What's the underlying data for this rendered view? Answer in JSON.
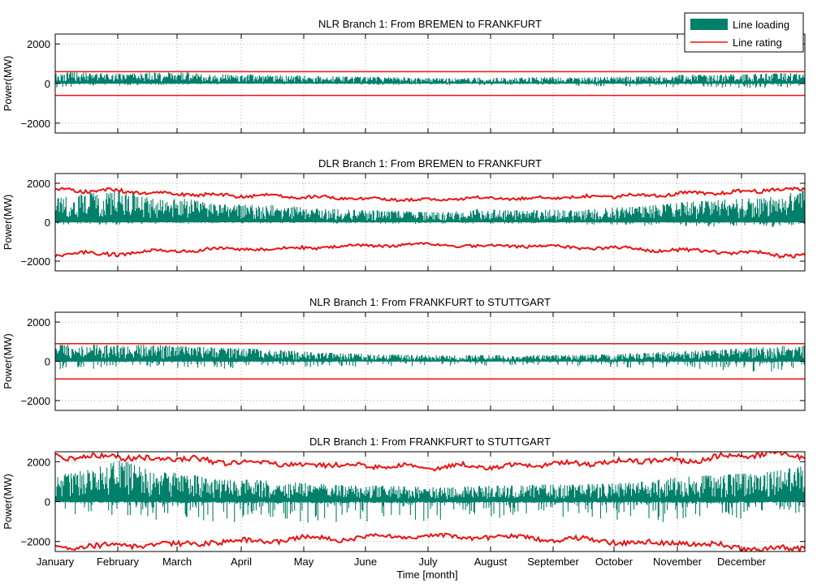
{
  "figure": {
    "xlabel": "Time [month]",
    "months": [
      "January",
      "February",
      "March",
      "April",
      "May",
      "June",
      "July",
      "August",
      "September",
      "October",
      "November",
      "December"
    ]
  },
  "legend": {
    "loading_label": "Line loading",
    "rating_label": "Line rating",
    "placement": "top-right"
  },
  "colors": {
    "loading": "#00806a",
    "rating": "#ee1111",
    "grid": "#8c8c8c",
    "axis": "#000000"
  },
  "chart_data": [
    {
      "type": "area",
      "title": "NLR Branch 1: From BREMEN to FRANKFURT",
      "ylabel": "Power(MW)",
      "yticks": [
        "2000",
        "0",
        "−2000"
      ],
      "ylim": [
        -2500,
        2500
      ],
      "rating": "static",
      "rating_values": [
        600,
        -600
      ],
      "loading_profile": [
        560,
        560,
        480,
        560,
        560,
        470,
        460,
        420,
        380,
        350,
        330,
        300,
        260,
        300,
        280,
        330,
        300,
        330,
        360,
        430,
        440,
        470,
        500,
        560
      ],
      "neg_profile": [
        -200,
        -120,
        -100,
        -80,
        -60,
        -40,
        -40,
        -40,
        -40,
        -40,
        -80,
        -80,
        -80,
        -80,
        -80,
        -80,
        -120,
        -160,
        -160,
        -200,
        -200,
        -250,
        -250,
        -150
      ]
    },
    {
      "type": "area",
      "title": "DLR Branch 1: From BREMEN to FRANKFURT",
      "ylabel": "Power(MW)",
      "yticks": [
        "2000",
        "0",
        "−2000"
      ],
      "ylim": [
        -2500,
        2500
      ],
      "rating": "dynamic",
      "rating_values": [
        1650,
        1620,
        1600,
        1500,
        1450,
        1400,
        1350,
        1380,
        1300,
        1250,
        1200,
        1180,
        1150,
        1200,
        1250,
        1200,
        1280,
        1300,
        1350,
        1400,
        1450,
        1500,
        1550,
        1700,
        1650
      ],
      "loading_profile": [
        1200,
        1500,
        1650,
        1200,
        1200,
        900,
        900,
        850,
        700,
        650,
        600,
        550,
        500,
        700,
        600,
        650,
        600,
        750,
        800,
        1000,
        1100,
        1200,
        1300,
        1650
      ],
      "neg_profile": [
        -200,
        -150,
        -120,
        -100,
        -80,
        -60,
        -60,
        -60,
        -60,
        -60,
        -80,
        -80,
        -80,
        -80,
        -80,
        -80,
        -120,
        -160,
        -200,
        -200,
        -250,
        -250,
        -250,
        -150
      ]
    },
    {
      "type": "area",
      "title": "NLR Branch 1: From FRANKFURT to STUTTGART",
      "ylabel": "Power(MW)",
      "yticks": [
        "2000",
        "0",
        "−2000"
      ],
      "ylim": [
        -2500,
        2500
      ],
      "rating": "static",
      "rating_values": [
        900,
        -900
      ],
      "loading_profile": [
        850,
        850,
        820,
        850,
        750,
        700,
        650,
        560,
        450,
        400,
        350,
        330,
        300,
        320,
        300,
        320,
        330,
        360,
        420,
        520,
        560,
        650,
        750,
        850
      ],
      "neg_profile": [
        -500,
        -450,
        -400,
        -350,
        -350,
        -400,
        -400,
        -350,
        -300,
        -300,
        -250,
        -250,
        -250,
        -250,
        -200,
        -200,
        -250,
        -300,
        -350,
        -400,
        -400,
        -500,
        -550,
        -300
      ]
    },
    {
      "type": "area",
      "title": "DLR Branch 1: From FRANKFURT to STUTTGART",
      "ylabel": "Power(MW)",
      "yticks": [
        "2000",
        "0",
        "−2000"
      ],
      "ylim": [
        -2500,
        2500
      ],
      "rating": "dynamic",
      "rating_values": [
        2300,
        2200,
        2300,
        2100,
        2200,
        2000,
        2000,
        1950,
        1800,
        1900,
        1750,
        1800,
        1700,
        1800,
        1750,
        1800,
        1900,
        1900,
        2000,
        2100,
        2000,
        2200,
        2300,
        2400,
        2350
      ],
      "loading_profile": [
        1300,
        1600,
        2100,
        1500,
        1400,
        1100,
        1100,
        1000,
        900,
        800,
        800,
        750,
        700,
        800,
        800,
        850,
        850,
        900,
        1000,
        1200,
        1300,
        1400,
        1500,
        1800
      ],
      "neg_profile": [
        -600,
        -700,
        -800,
        -900,
        -1000,
        -1200,
        -1200,
        -1100,
        -1100,
        -1000,
        -1000,
        -1000,
        -900,
        -900,
        -800,
        -800,
        -800,
        -900,
        -1000,
        -1100,
        -1000,
        -900,
        -800,
        -600
      ]
    }
  ]
}
